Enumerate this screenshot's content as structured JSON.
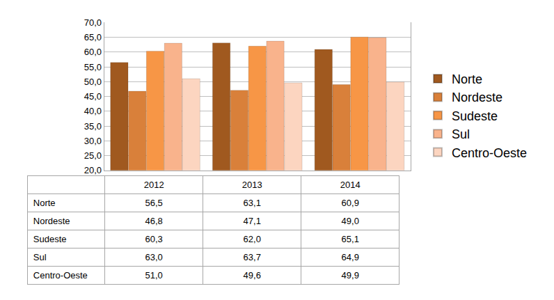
{
  "chart_data": {
    "type": "bar",
    "categories": [
      "2012",
      "2013",
      "2014"
    ],
    "series": [
      {
        "name": "Norte",
        "color": "#a0591f",
        "values": [
          56.5,
          63.1,
          60.9
        ],
        "value_labels": [
          "56,5",
          "63,1",
          "60,9"
        ]
      },
      {
        "name": "Nordeste",
        "color": "#d9803a",
        "values": [
          46.8,
          47.1,
          49.0
        ],
        "value_labels": [
          "46,8",
          "47,1",
          "49,0"
        ]
      },
      {
        "name": "Sudeste",
        "color": "#f79646",
        "values": [
          60.3,
          62.0,
          65.1
        ],
        "value_labels": [
          "60,3",
          "62,0",
          "65,1"
        ]
      },
      {
        "name": "Sul",
        "color": "#f9b38c",
        "values": [
          63.0,
          63.7,
          64.9
        ],
        "value_labels": [
          "63,0",
          "63,7",
          "64,9"
        ]
      },
      {
        "name": "Centro-Oeste",
        "color": "#fcd5c0",
        "values": [
          51.0,
          49.6,
          49.9
        ],
        "value_labels": [
          "51,0",
          "49,6",
          "49,9"
        ]
      }
    ],
    "ylim": [
      20,
      70
    ],
    "yticks": [
      {
        "value": 20,
        "label": "20,0"
      },
      {
        "value": 25,
        "label": "25,0"
      },
      {
        "value": 30,
        "label": "30,0"
      },
      {
        "value": 35,
        "label": "35,0"
      },
      {
        "value": 40,
        "label": "40,0"
      },
      {
        "value": 45,
        "label": "45,0"
      },
      {
        "value": 50,
        "label": "50,0"
      },
      {
        "value": 55,
        "label": "55,0"
      },
      {
        "value": 60,
        "label": "60,0"
      },
      {
        "value": 65,
        "label": "65,0"
      },
      {
        "value": 70,
        "label": "70,0"
      }
    ],
    "grid": true,
    "legend": "right",
    "tick_labels": "y"
  }
}
